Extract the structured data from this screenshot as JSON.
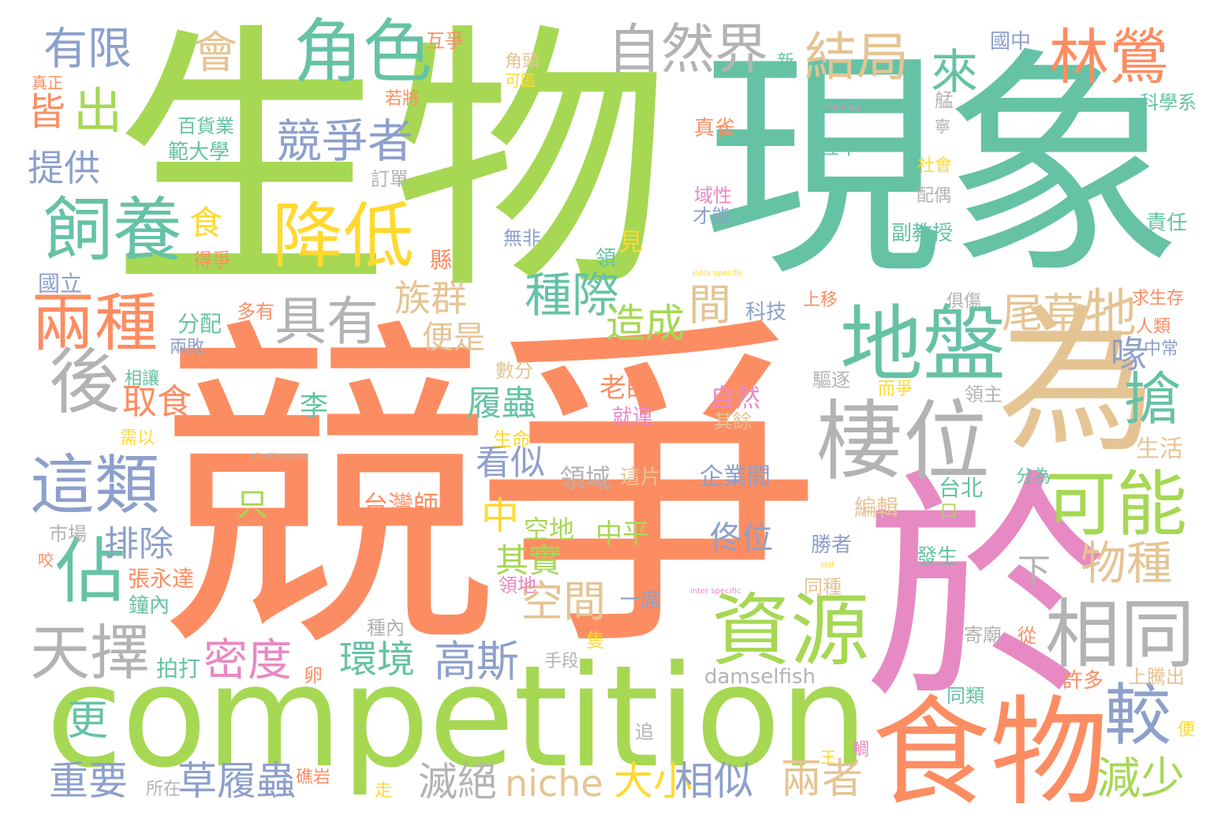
{
  "palette": {
    "green": "#a6d854",
    "teal": "#66c2a5",
    "orange": "#fc8d62",
    "pink": "#e78ac3",
    "blue": "#8da0cb",
    "tan": "#e5c494",
    "gray": "#b3b3b3",
    "yellow": "#ffd92f"
  },
  "words": [
    {
      "text": "生物",
      "color": "green"
    },
    {
      "text": "現象",
      "color": "teal"
    },
    {
      "text": "競爭",
      "color": "orange"
    },
    {
      "text": "competition",
      "color": "green"
    },
    {
      "text": "於",
      "color": "pink"
    },
    {
      "text": "為",
      "color": "tan"
    },
    {
      "text": "食物",
      "color": "orange"
    },
    {
      "text": "棲位",
      "color": "gray"
    },
    {
      "text": "地盤",
      "color": "teal"
    },
    {
      "text": "資源",
      "color": "green"
    },
    {
      "text": "相同",
      "color": "gray"
    },
    {
      "text": "可能",
      "color": "green"
    },
    {
      "text": "搶",
      "color": "teal"
    },
    {
      "text": "較",
      "color": "blue"
    },
    {
      "text": "角色",
      "color": "teal"
    },
    {
      "text": "自然界",
      "color": "gray"
    },
    {
      "text": "結局",
      "color": "tan"
    },
    {
      "text": "林鶯",
      "color": "orange"
    },
    {
      "text": "來",
      "color": "teal"
    },
    {
      "text": "有限",
      "color": "blue"
    },
    {
      "text": "會",
      "color": "tan"
    },
    {
      "text": "出",
      "color": "green"
    },
    {
      "text": "皆",
      "color": "orange"
    },
    {
      "text": "提供",
      "color": "blue"
    },
    {
      "text": "競爭者",
      "color": "blue"
    },
    {
      "text": "飼養",
      "color": "teal"
    },
    {
      "text": "食",
      "color": "yellow"
    },
    {
      "text": "降低",
      "color": "yellow"
    },
    {
      "text": "兩種",
      "color": "orange"
    },
    {
      "text": "具有",
      "color": "gray"
    },
    {
      "text": "族群",
      "color": "tan"
    },
    {
      "text": "種際",
      "color": "teal"
    },
    {
      "text": "造成",
      "color": "green"
    },
    {
      "text": "間",
      "color": "tan"
    },
    {
      "text": "尾草",
      "color": "tan"
    },
    {
      "text": "牠",
      "color": "tan"
    },
    {
      "text": "喙",
      "color": "blue"
    },
    {
      "text": "後",
      "color": "gray"
    },
    {
      "text": "這類",
      "color": "blue"
    },
    {
      "text": "佔",
      "color": "teal"
    },
    {
      "text": "排除",
      "color": "blue"
    },
    {
      "text": "取食",
      "color": "orange"
    },
    {
      "text": "便是",
      "color": "tan"
    },
    {
      "text": "履蟲",
      "color": "teal"
    },
    {
      "text": "看似",
      "color": "blue"
    },
    {
      "text": "中",
      "color": "yellow"
    },
    {
      "text": "其實",
      "color": "green"
    },
    {
      "text": "空間",
      "color": "tan"
    },
    {
      "text": "物種",
      "color": "tan"
    },
    {
      "text": "下",
      "color": "gray"
    },
    {
      "text": "天擇",
      "color": "gray"
    },
    {
      "text": "密度",
      "color": "pink"
    },
    {
      "text": "環境",
      "color": "teal"
    },
    {
      "text": "高斯",
      "color": "blue"
    },
    {
      "text": "更",
      "color": "teal"
    },
    {
      "text": "重要",
      "color": "blue"
    },
    {
      "text": "草履蟲",
      "color": "blue"
    },
    {
      "text": "滅絕",
      "color": "gray"
    },
    {
      "text": "niche",
      "color": "tan"
    },
    {
      "text": "大小",
      "color": "yellow"
    },
    {
      "text": "相似",
      "color": "blue"
    },
    {
      "text": "兩者",
      "color": "tan"
    },
    {
      "text": "減少",
      "color": "green"
    },
    {
      "text": "只",
      "color": "green"
    },
    {
      "text": "台灣師",
      "color": "orange"
    },
    {
      "text": "佟位",
      "color": "blue"
    },
    {
      "text": "中平",
      "color": "green"
    },
    {
      "text": "空地",
      "color": "green"
    },
    {
      "text": "領域",
      "color": "gray"
    },
    {
      "text": "這片",
      "color": "tan"
    },
    {
      "text": "企業間",
      "color": "blue"
    },
    {
      "text": "老師",
      "color": "orange"
    },
    {
      "text": "自然",
      "color": "pink"
    },
    {
      "text": "李",
      "color": "teal"
    },
    {
      "text": "就連",
      "color": "pink"
    },
    {
      "text": "其餘",
      "color": "tan"
    },
    {
      "text": "驅逐",
      "color": "gray"
    },
    {
      "text": "而爭",
      "color": "yellow"
    },
    {
      "text": "領主",
      "color": "gray"
    },
    {
      "text": "生活",
      "color": "tan"
    },
    {
      "text": "分為",
      "color": "teal"
    },
    {
      "text": "台北",
      "color": "teal"
    },
    {
      "text": "口",
      "color": "green"
    },
    {
      "text": "編輯",
      "color": "tan"
    },
    {
      "text": "勝者",
      "color": "blue"
    },
    {
      "text": "發生",
      "color": "teal"
    },
    {
      "text": "同種",
      "color": "tan"
    },
    {
      "text": "張永達",
      "color": "orange"
    },
    {
      "text": "鐘內",
      "color": "teal"
    },
    {
      "text": "領地",
      "color": "pink"
    },
    {
      "text": "一席",
      "color": "blue"
    },
    {
      "text": "種內",
      "color": "gray"
    },
    {
      "text": "手段",
      "color": "gray"
    },
    {
      "text": "隻",
      "color": "yellow"
    },
    {
      "text": "拍打",
      "color": "teal"
    },
    {
      "text": "卵",
      "color": "orange"
    },
    {
      "text": "damselfish",
      "color": "gray"
    },
    {
      "text": "寄廟",
      "color": "gray"
    },
    {
      "text": "從",
      "color": "orange"
    },
    {
      "text": "許多",
      "color": "orange"
    },
    {
      "text": "上騰出",
      "color": "tan"
    },
    {
      "text": "同類",
      "color": "teal"
    },
    {
      "text": "追",
      "color": "gray"
    },
    {
      "text": "便",
      "color": "yellow"
    },
    {
      "text": "鯛",
      "color": "pink"
    },
    {
      "text": "王",
      "color": "yellow"
    },
    {
      "text": "所在",
      "color": "gray"
    },
    {
      "text": "礁岩",
      "color": "orange"
    },
    {
      "text": "走",
      "color": "yellow"
    },
    {
      "text": "市場",
      "color": "gray"
    },
    {
      "text": "咬",
      "color": "orange"
    },
    {
      "text": "需以",
      "color": "yellow"
    },
    {
      "text": "生命",
      "color": "yellow"
    },
    {
      "text": "數分",
      "color": "tan"
    },
    {
      "text": "相讓",
      "color": "teal"
    },
    {
      "text": "兩敗",
      "color": "blue"
    },
    {
      "text": "分配",
      "color": "teal"
    },
    {
      "text": "多有",
      "color": "orange"
    },
    {
      "text": "國立",
      "color": "blue"
    },
    {
      "text": "縣",
      "color": "orange"
    },
    {
      "text": "得爭",
      "color": "orange"
    },
    {
      "text": "範大學",
      "color": "teal"
    },
    {
      "text": "百貨業",
      "color": "teal"
    },
    {
      "text": "訂單",
      "color": "gray"
    },
    {
      "text": "若將",
      "color": "orange"
    },
    {
      "text": "互爭",
      "color": "orange"
    },
    {
      "text": "角頭",
      "color": "tan"
    },
    {
      "text": "可區",
      "color": "yellow"
    },
    {
      "text": "無非",
      "color": "blue"
    },
    {
      "text": "領",
      "color": "teal"
    },
    {
      "text": "見",
      "color": "yellow"
    },
    {
      "text": "才能",
      "color": "blue"
    },
    {
      "text": "域性",
      "color": "pink"
    },
    {
      "text": "真雀",
      "color": "orange"
    },
    {
      "text": "互不",
      "color": "teal"
    },
    {
      "text": "新",
      "color": "teal"
    },
    {
      "text": "國中",
      "color": "blue"
    },
    {
      "text": "科學系",
      "color": "teal"
    },
    {
      "text": "艋",
      "color": "gray"
    },
    {
      "text": "寧",
      "color": "gray"
    },
    {
      "text": "社會",
      "color": "yellow"
    },
    {
      "text": "配偶",
      "color": "gray"
    },
    {
      "text": "副教授",
      "color": "teal"
    },
    {
      "text": "責任",
      "color": "teal"
    },
    {
      "text": "上移",
      "color": "orange"
    },
    {
      "text": "科技",
      "color": "blue"
    },
    {
      "text": "俱傷",
      "color": "gray"
    },
    {
      "text": "求生存",
      "color": "orange"
    },
    {
      "text": "人類",
      "color": "orange"
    },
    {
      "text": "中常",
      "color": "blue"
    },
    {
      "text": "真正",
      "color": "orange"
    },
    {
      "text": "thinning",
      "color": "pink"
    },
    {
      "text": "planthoppers",
      "color": "gray"
    },
    {
      "text": "intra specific",
      "color": "yellow"
    },
    {
      "text": "inter specific",
      "color": "pink"
    },
    {
      "text": "self",
      "color": "yellow"
    }
  ]
}
